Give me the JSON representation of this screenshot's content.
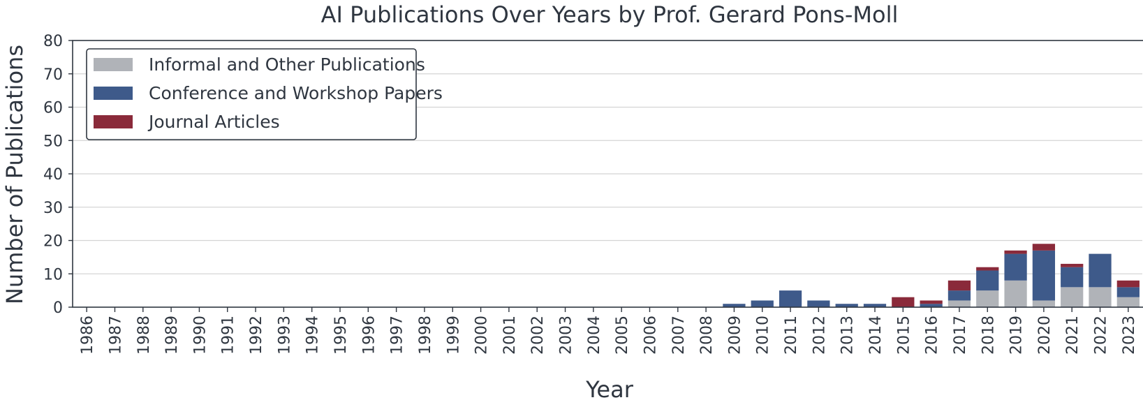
{
  "chart_data": {
    "type": "bar",
    "stacked": true,
    "title": "AI Publications Over Years by Prof. Gerard Pons-Moll",
    "xlabel": "Year",
    "ylabel": "Number of Publications",
    "ylim": [
      0,
      80
    ],
    "yticks": [
      "0",
      "10",
      "20",
      "30",
      "40",
      "50",
      "60",
      "70",
      "80"
    ],
    "grid": true,
    "legend_position": "top-left",
    "categories": [
      "1986",
      "1987",
      "1988",
      "1989",
      "1990",
      "1991",
      "1992",
      "1993",
      "1994",
      "1995",
      "1996",
      "1997",
      "1998",
      "1999",
      "2000",
      "2001",
      "2002",
      "2003",
      "2004",
      "2005",
      "2006",
      "2007",
      "2008",
      "2009",
      "2010",
      "2011",
      "2012",
      "2013",
      "2014",
      "2015",
      "2016",
      "2017",
      "2018",
      "2019",
      "2020",
      "2021",
      "2022",
      "2023"
    ],
    "series": [
      {
        "name": "Informal and Other Publications",
        "color": "#b0b3b8",
        "values": [
          0,
          0,
          0,
          0,
          0,
          0,
          0,
          0,
          0,
          0,
          0,
          0,
          0,
          0,
          0,
          0,
          0,
          0,
          0,
          0,
          0,
          0,
          0,
          0,
          0,
          0,
          0,
          0,
          0,
          0,
          0,
          2,
          5,
          8,
          2,
          6,
          6,
          3
        ]
      },
      {
        "name": "Conference and Workshop Papers",
        "color": "#3e5a8a",
        "values": [
          0,
          0,
          0,
          0,
          0,
          0,
          0,
          0,
          0,
          0,
          0,
          0,
          0,
          0,
          0,
          0,
          0,
          0,
          0,
          0,
          0,
          0,
          0,
          1,
          2,
          5,
          2,
          1,
          1,
          0,
          1,
          3,
          6,
          8,
          15,
          6,
          10,
          3
        ]
      },
      {
        "name": "Journal Articles",
        "color": "#8a2a3a",
        "values": [
          0,
          0,
          0,
          0,
          0,
          0,
          0,
          0,
          0,
          0,
          0,
          0,
          0,
          0,
          0,
          0,
          0,
          0,
          0,
          0,
          0,
          0,
          0,
          0,
          0,
          0,
          0,
          0,
          0,
          3,
          1,
          3,
          1,
          1,
          2,
          1,
          0,
          2
        ]
      }
    ]
  }
}
